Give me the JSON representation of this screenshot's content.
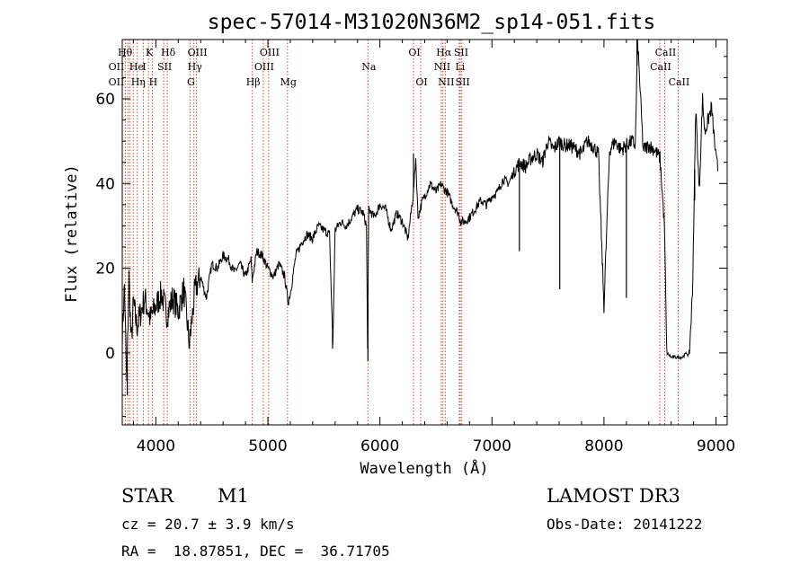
{
  "chart_data": {
    "type": "line",
    "title": "spec-57014-M31020N36M2_sp14-051.fits",
    "xlabel": "Wavelength (Å)",
    "ylabel": "Flux (relative)",
    "xlim": [
      3700,
      9100
    ],
    "ylim": [
      -17,
      74
    ],
    "x_ticks": [
      4000,
      5000,
      6000,
      7000,
      8000,
      9000
    ],
    "y_ticks": [
      0,
      20,
      40,
      60
    ],
    "series": [
      {
        "name": "flux",
        "x": [
          3700,
          3720,
          3740,
          3760,
          3780,
          3800,
          3830,
          3860,
          3900,
          3950,
          4000,
          4050,
          4100,
          4150,
          4200,
          4250,
          4300,
          4350,
          4400,
          4450,
          4500,
          4550,
          4600,
          4650,
          4700,
          4750,
          4800,
          4850,
          4860,
          4900,
          4950,
          5000,
          5050,
          5100,
          5150,
          5180,
          5200,
          5250,
          5300,
          5350,
          5400,
          5450,
          5500,
          5550,
          5580,
          5600,
          5650,
          5700,
          5750,
          5800,
          5850,
          5880,
          5890,
          5900,
          5950,
          6000,
          6050,
          6100,
          6150,
          6200,
          6250,
          6300,
          6320,
          6340,
          6380,
          6400,
          6450,
          6500,
          6550,
          6563,
          6600,
          6650,
          6700,
          6720,
          6760,
          6800,
          6850,
          6900,
          6950,
          7000,
          7050,
          7100,
          7150,
          7200,
          7250,
          7300,
          7350,
          7400,
          7450,
          7500,
          7550,
          7600,
          7650,
          7700,
          7750,
          7800,
          7850,
          7900,
          7950,
          8000,
          8050,
          8100,
          8150,
          8200,
          8250,
          8280,
          8300,
          8350,
          8400,
          8450,
          8500,
          8540,
          8560,
          8600,
          8650,
          8700,
          8740,
          8760,
          8790,
          8820,
          8850,
          8880,
          8900,
          8930,
          8960,
          9000,
          9020
        ],
        "values": [
          4,
          16,
          -8,
          18,
          2,
          12,
          6,
          9,
          13,
          8,
          11,
          14,
          9,
          13,
          10,
          15,
          2,
          15,
          18,
          13,
          21,
          20,
          23,
          22,
          19,
          21,
          18,
          22,
          17,
          24,
          23,
          20,
          18,
          21,
          18,
          12,
          14,
          23,
          26,
          28,
          27,
          30,
          29,
          28,
          2,
          29,
          31,
          30,
          32,
          34,
          33,
          30,
          2,
          34,
          32,
          35,
          34,
          29,
          33,
          31,
          27,
          38,
          46,
          32,
          36,
          37,
          40,
          38,
          40,
          39,
          38,
          35,
          33,
          31,
          31,
          32,
          34,
          36,
          35,
          37,
          38,
          41,
          40,
          43,
          45,
          44,
          46,
          47,
          45,
          50,
          48,
          50,
          49,
          49,
          48,
          47,
          50,
          49,
          47,
          11,
          48,
          50,
          48,
          49,
          50,
          49,
          74,
          48,
          49,
          48,
          46,
          30,
          0,
          -1,
          -1,
          -1,
          0,
          -1,
          14,
          58,
          38,
          60,
          52,
          55,
          58,
          46,
          43
        ]
      }
    ],
    "spikes": [
      {
        "x": 5577,
        "y": 1
      },
      {
        "x": 5893,
        "y": -2
      },
      {
        "x": 6300,
        "y": 47
      },
      {
        "x": 7245,
        "y": 24
      },
      {
        "x": 7605,
        "y": 15
      },
      {
        "x": 8200,
        "y": 13
      },
      {
        "x": 8295,
        "y": 74
      },
      {
        "x": 8810,
        "y": 36
      },
      {
        "x": 3745,
        "y": -10
      }
    ],
    "line_markers": [
      {
        "label": "OII",
        "x": 3727,
        "row": 2,
        "align": "right"
      },
      {
        "label": "OII",
        "x": 3727,
        "row": 3,
        "align": "right"
      },
      {
        "label": "Hθ",
        "x": 3798,
        "row": 1,
        "align": "right"
      },
      {
        "label": "He",
        "x": 3820,
        "row": 2
      },
      {
        "label": "Hη",
        "x": 3835,
        "row": 3
      },
      {
        "label": "K",
        "x": 3934,
        "row": 1
      },
      {
        "label": "I",
        "x": 3889,
        "row": 2
      },
      {
        "label": "H",
        "x": 3968,
        "row": 3
      },
      {
        "label": "SII",
        "x": 4070,
        "row": 2
      },
      {
        "label": "Hδ",
        "x": 4102,
        "row": 1
      },
      {
        "label": "OIII",
        "x": 4363,
        "row": 1
      },
      {
        "label": "Hγ",
        "x": 4340,
        "row": 2
      },
      {
        "label": "G",
        "x": 4305,
        "row": 3
      },
      {
        "label": "Hβ",
        "x": 4861,
        "row": 3
      },
      {
        "label": "OIII",
        "x": 5007,
        "row": 1
      },
      {
        "label": "OIII",
        "x": 4959,
        "row": 2
      },
      {
        "label": "Mg",
        "x": 5175,
        "row": 3
      },
      {
        "label": "Na",
        "x": 5893,
        "row": 2
      },
      {
        "label": "OI",
        "x": 6300,
        "row": 1
      },
      {
        "label": "OI",
        "x": 6364,
        "row": 3
      },
      {
        "label": "Hα",
        "x": 6563,
        "row": 1
      },
      {
        "label": "NII",
        "x": 6548,
        "row": 2
      },
      {
        "label": "NII",
        "x": 6583,
        "row": 3
      },
      {
        "label": "SII",
        "x": 6717,
        "row": 1
      },
      {
        "label": "Li",
        "x": 6708,
        "row": 2
      },
      {
        "label": "SII",
        "x": 6731,
        "row": 3
      },
      {
        "label": "CaII",
        "x": 8542,
        "row": 1
      },
      {
        "label": "CaII",
        "x": 8498,
        "row": 2
      },
      {
        "label": "CaII",
        "x": 8662,
        "row": 3
      }
    ],
    "marker_lines": [
      3727,
      3750,
      3770,
      3798,
      3835,
      3889,
      3934,
      3968,
      4070,
      4102,
      4305,
      4340,
      4363,
      4861,
      4959,
      5007,
      5175,
      5893,
      6300,
      6364,
      6548,
      6563,
      6583,
      6708,
      6717,
      6731,
      8498,
      8542,
      8662
    ]
  },
  "info": {
    "object_class": "STAR",
    "subclass": "M1",
    "survey": "LAMOST DR3",
    "cz": "cz = 20.7 ± 3.9 km/s",
    "obs_date": "Obs-Date: 20141222",
    "coords": "RA =  18.87851, DEC =  36.71705"
  }
}
